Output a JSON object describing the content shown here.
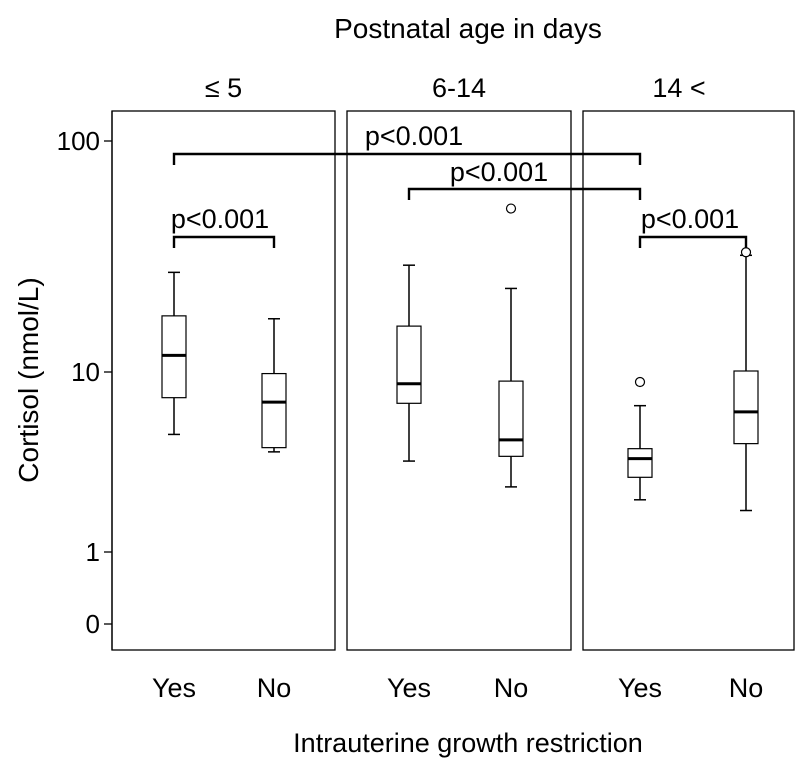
{
  "chart_data": {
    "type": "box",
    "title": "Postnatal age in days",
    "xlabel": "Intrauterine growth restriction",
    "ylabel": "Cortisol (nmol/L)",
    "yscale": "log",
    "ylim": [
      0.45,
      150
    ],
    "yticks": [
      {
        "value": 100,
        "label": "100"
      },
      {
        "value": 10,
        "label": "10"
      },
      {
        "value": 1,
        "label": "1"
      },
      {
        "value": 0.5,
        "label": "0"
      }
    ],
    "panels": [
      {
        "label": "≤ 5",
        "groups": [
          {
            "category": "Yes",
            "whisker_low": 4.5,
            "q1": 7.2,
            "median": 11.8,
            "q3": 17.5,
            "whisker_high": 27,
            "outliers": []
          },
          {
            "category": "No",
            "whisker_low": 3.6,
            "q1": 3.8,
            "median": 6.8,
            "q3": 9.8,
            "whisker_high": 17,
            "outliers": []
          }
        ]
      },
      {
        "label": "6-14",
        "groups": [
          {
            "category": "Yes",
            "whisker_low": 3.2,
            "q1": 6.7,
            "median": 8.6,
            "q3": 15.8,
            "whisker_high": 29,
            "outliers": []
          },
          {
            "category": "No",
            "whisker_low": 2.3,
            "q1": 3.4,
            "median": 4.2,
            "q3": 8.9,
            "whisker_high": 23,
            "outliers": [
              51
            ]
          }
        ]
      },
      {
        "label": "14 <",
        "groups": [
          {
            "category": "Yes",
            "whisker_low": 1.95,
            "q1": 2.6,
            "median": 3.3,
            "q3": 3.75,
            "whisker_high": 6.5,
            "outliers": [
              8.8
            ]
          },
          {
            "category": "No",
            "whisker_low": 1.7,
            "q1": 4.0,
            "median": 6.0,
            "q3": 10.1,
            "whisker_high": 32,
            "outliers": [
              33
            ]
          }
        ]
      }
    ],
    "annotations": [
      {
        "text": "p<0.001",
        "from": [
          0,
          "Yes"
        ],
        "to": [
          2,
          "Yes"
        ]
      },
      {
        "text": "p<0.001",
        "from": [
          1,
          "Yes"
        ],
        "to": [
          2,
          "Yes"
        ]
      },
      {
        "text": "p<0.001",
        "from": [
          0,
          "Yes"
        ],
        "to": [
          0,
          "No"
        ]
      },
      {
        "text": "p<0.001",
        "from": [
          2,
          "Yes"
        ],
        "to": [
          2,
          "No"
        ]
      }
    ]
  }
}
